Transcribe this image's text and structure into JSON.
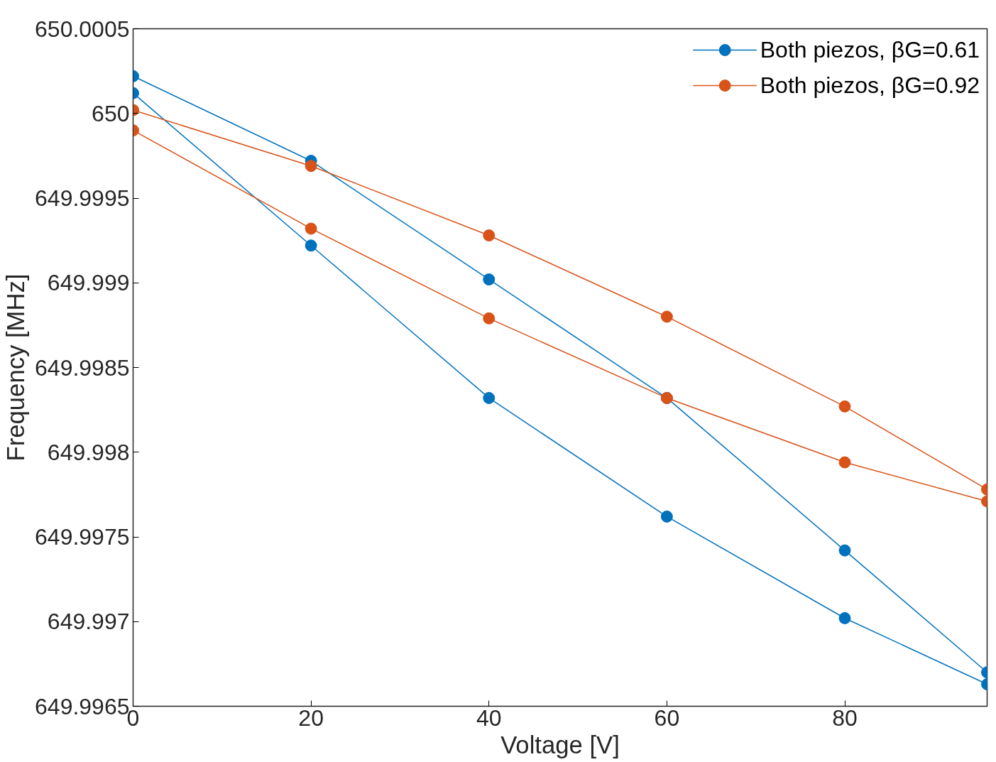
{
  "chart_data": {
    "type": "line",
    "xlabel": "Voltage [V]",
    "ylabel": "Frequency [MHz]",
    "series": [
      {
        "name": "Both piezos, βG=0.61",
        "color": "#0072bd",
        "x": [
          0,
          20,
          40,
          60,
          80,
          96,
          96,
          80,
          60,
          40,
          20,
          0
        ],
        "values": [
          650.00012,
          649.99922,
          649.99832,
          649.99762,
          649.99702,
          649.99663,
          649.9967,
          649.99742,
          649.99832,
          649.99902,
          649.99972,
          650.00022
        ]
      },
      {
        "name": "Both piezos, βG=0.92",
        "color": "#d95319",
        "x": [
          0,
          20,
          40,
          60,
          80,
          96,
          96,
          80,
          60,
          40,
          20,
          0
        ],
        "values": [
          649.9999,
          649.99932,
          649.99879,
          649.99832,
          649.99794,
          649.99771,
          649.99778,
          649.99827,
          649.9988,
          649.99928,
          649.99969,
          650.00002
        ]
      }
    ],
    "xlim": [
      0,
      96
    ],
    "xticks": [
      0,
      20,
      40,
      60,
      80
    ],
    "ylim": [
      649.9965,
      650.0005
    ],
    "yticks": [
      649.9965,
      649.997,
      649.9975,
      649.998,
      649.9985,
      649.999,
      649.9995,
      650,
      650.0005
    ],
    "grid": false,
    "legend": "top right",
    "marker": "circle",
    "line_style": "solid"
  }
}
